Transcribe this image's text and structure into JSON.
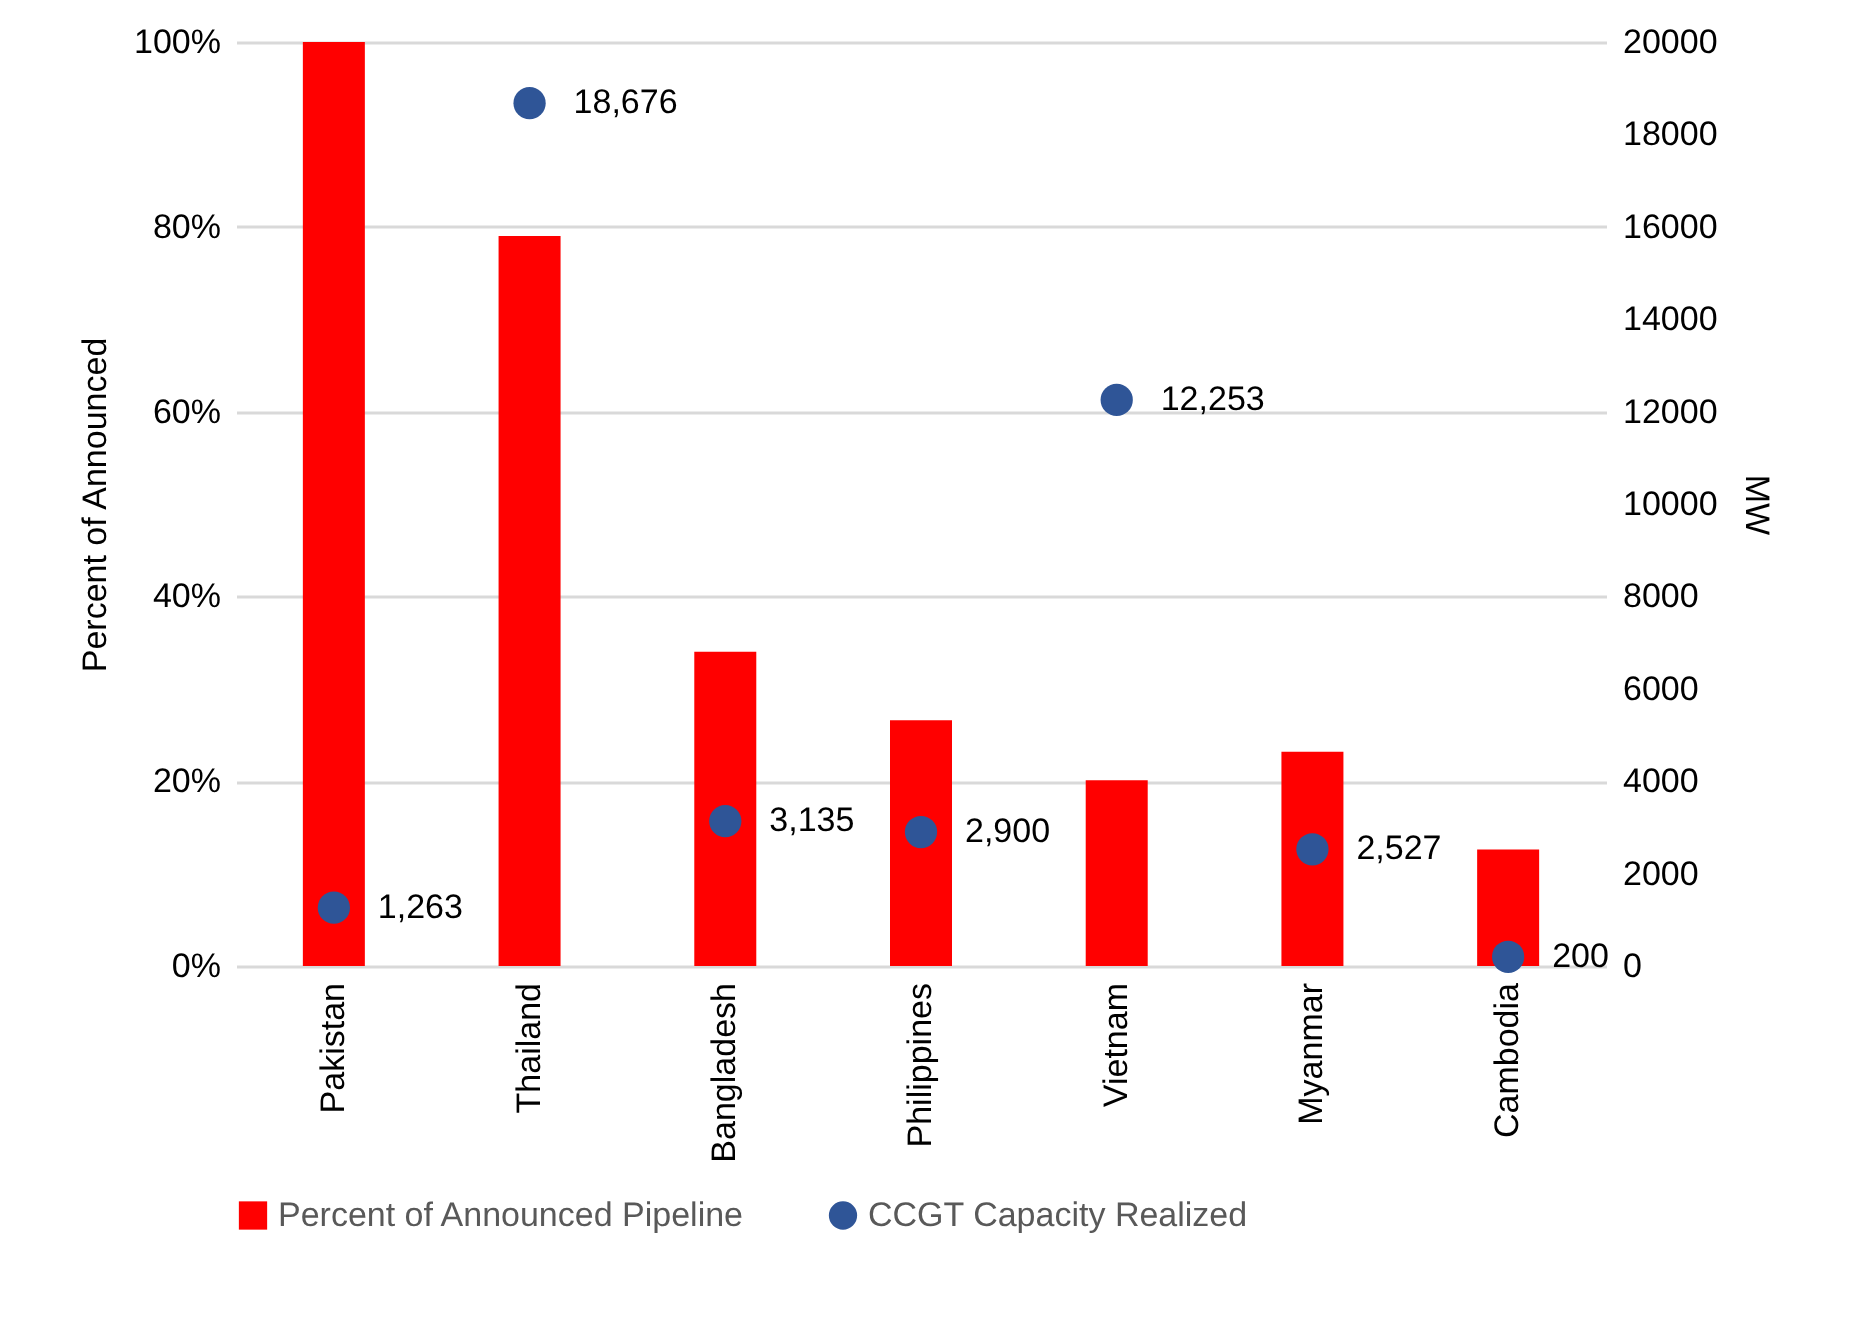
{
  "chart_data": {
    "type": "bar",
    "categories": [
      "Pakistan",
      "Thailand",
      "Bangladesh",
      "Philippines",
      "Vietnam",
      "Myanmar",
      "Cambodia"
    ],
    "series": [
      {
        "name": "Percent of Announced Pipeline",
        "color": "#ff0000",
        "values": [
          100,
          79,
          34,
          26.6,
          20.1,
          23.2,
          12.6
        ]
      },
      {
        "name": "CCGT Capacity Realized",
        "type": "scatter",
        "axis": "y2",
        "color": "#2f5597",
        "marker": "circle",
        "values": [
          1263,
          18676,
          3135,
          2900,
          12253,
          2527,
          200
        ],
        "value_labels": [
          "1,263",
          "18,676",
          "3,135",
          "2,900",
          "12,253",
          "2,527",
          "200"
        ]
      }
    ],
    "ylabel": "Percent of Announced",
    "y2label": "MW",
    "ylim": [
      0,
      100
    ],
    "yticks": [
      {
        "value": 0,
        "label": "0%"
      },
      {
        "value": 20,
        "label": "20%"
      },
      {
        "value": 40,
        "label": "40%"
      },
      {
        "value": 60,
        "label": "60%"
      },
      {
        "value": 80,
        "label": "80%"
      },
      {
        "value": 100,
        "label": "100%"
      }
    ],
    "y2lim": [
      0,
      20000
    ],
    "y2ticks": [
      0,
      2000,
      4000,
      6000,
      8000,
      10000,
      12000,
      14000,
      16000,
      18000,
      20000
    ],
    "grid": "y",
    "legend": "bottom"
  }
}
